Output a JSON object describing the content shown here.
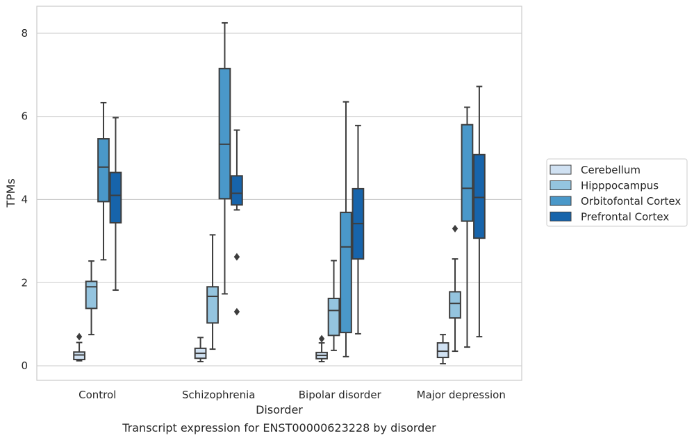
{
  "chart_data": {
    "type": "box",
    "xlabel": "Disorder",
    "ylabel": "TPMs",
    "caption": "Transcript expression for ENST00000623228 by disorder",
    "ylim": [
      -0.35,
      8.65
    ],
    "yticks": [
      0,
      2,
      4,
      6,
      8
    ],
    "grid": true,
    "legend_position": "right",
    "categories": [
      "Control",
      "Schizophrenia",
      "Bipolar disorder",
      "Major depression"
    ],
    "series": [
      {
        "name": "Cerebellum",
        "color": "#d0e1f2",
        "boxes": [
          {
            "whisker_low": 0.12,
            "q1": 0.15,
            "median": 0.26,
            "q3": 0.33,
            "whisker_high": 0.56,
            "outliers": [
              0.7
            ]
          },
          {
            "whisker_low": 0.1,
            "q1": 0.18,
            "median": 0.3,
            "q3": 0.42,
            "whisker_high": 0.68,
            "outliers": []
          },
          {
            "whisker_low": 0.1,
            "q1": 0.17,
            "median": 0.25,
            "q3": 0.32,
            "whisker_high": 0.55,
            "outliers": [
              0.65
            ]
          },
          {
            "whisker_low": 0.05,
            "q1": 0.2,
            "median": 0.35,
            "q3": 0.55,
            "whisker_high": 0.75,
            "outliers": []
          }
        ]
      },
      {
        "name": "Hipppocampus",
        "color": "#94c4df",
        "boxes": [
          {
            "whisker_low": 0.75,
            "q1": 1.38,
            "median": 1.9,
            "q3": 2.03,
            "whisker_high": 2.52,
            "outliers": []
          },
          {
            "whisker_low": 0.4,
            "q1": 1.03,
            "median": 1.67,
            "q3": 1.9,
            "whisker_high": 3.15,
            "outliers": []
          },
          {
            "whisker_low": 0.37,
            "q1": 0.73,
            "median": 1.33,
            "q3": 1.62,
            "whisker_high": 2.53,
            "outliers": []
          },
          {
            "whisker_low": 0.35,
            "q1": 1.15,
            "median": 1.5,
            "q3": 1.78,
            "whisker_high": 2.57,
            "outliers": [
              3.3
            ]
          }
        ]
      },
      {
        "name": "Orbitofontal Cortex",
        "color": "#4a98c9",
        "boxes": [
          {
            "whisker_low": 2.55,
            "q1": 3.95,
            "median": 4.78,
            "q3": 5.46,
            "whisker_high": 6.33,
            "outliers": []
          },
          {
            "whisker_low": 1.73,
            "q1": 4.02,
            "median": 5.33,
            "q3": 7.15,
            "whisker_high": 8.25,
            "outliers": []
          },
          {
            "whisker_low": 0.22,
            "q1": 0.8,
            "median": 2.86,
            "q3": 3.69,
            "whisker_high": 6.35,
            "outliers": []
          },
          {
            "whisker_low": 0.45,
            "q1": 3.48,
            "median": 4.27,
            "q3": 5.8,
            "whisker_high": 6.22,
            "outliers": []
          }
        ]
      },
      {
        "name": "Prefrontal Cortex",
        "color": "#1764ab",
        "boxes": [
          {
            "whisker_low": 1.82,
            "q1": 3.44,
            "median": 4.1,
            "q3": 4.65,
            "whisker_high": 5.97,
            "outliers": []
          },
          {
            "whisker_low": 3.75,
            "q1": 3.87,
            "median": 4.15,
            "q3": 4.57,
            "whisker_high": 5.67,
            "outliers": [
              2.62,
              1.3
            ]
          },
          {
            "whisker_low": 0.77,
            "q1": 2.57,
            "median": 3.42,
            "q3": 4.26,
            "whisker_high": 5.78,
            "outliers": []
          },
          {
            "whisker_low": 0.7,
            "q1": 3.07,
            "median": 4.05,
            "q3": 5.08,
            "whisker_high": 6.72,
            "outliers": []
          }
        ]
      }
    ]
  }
}
